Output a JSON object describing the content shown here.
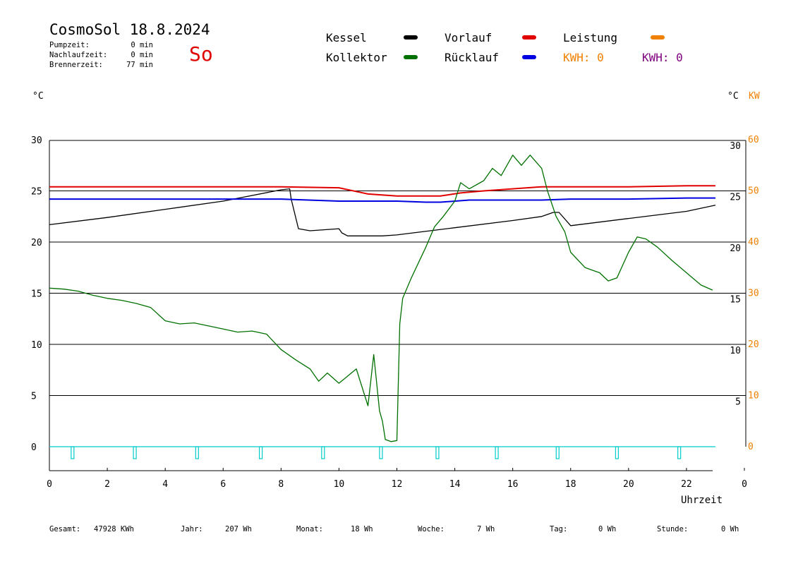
{
  "header": {
    "title": "CosmoSol 18.8.2024",
    "day": "So",
    "stats": [
      {
        "label": "Pumpzeit:",
        "value": "0 min"
      },
      {
        "label": "Nachlaufzeit:",
        "value": "0 min"
      },
      {
        "label": "Brennerzeit:",
        "value": "77 min"
      }
    ]
  },
  "legend": {
    "items": [
      {
        "label": "Kessel",
        "color": "#000000"
      },
      {
        "label": "Vorlauf",
        "color": "#e00000"
      },
      {
        "label": "Leistung",
        "color": "#f08000"
      },
      {
        "label": "Kollektor",
        "color": "#007000"
      },
      {
        "label": "Rücklauf",
        "color": "#0000e0"
      }
    ],
    "kwh": [
      {
        "text": "KWH: 0",
        "color": "#f08000"
      },
      {
        "text": "KWH: 0",
        "color": "#800080"
      }
    ]
  },
  "axes": {
    "left_unit": "°C",
    "right_unit_c": "°C",
    "right_unit_kw": "KW",
    "x_label": "Uhrzeit"
  },
  "footer": [
    {
      "label": "Gesamt:",
      "value": "47928 KWh"
    },
    {
      "label": "Jahr:",
      "value": "207 Wh"
    },
    {
      "label": "Monat:",
      "value": "18 Wh"
    },
    {
      "label": "Woche:",
      "value": "7 Wh"
    },
    {
      "label": "Tag:",
      "value": "0 Wh"
    },
    {
      "label": "Stunde:",
      "value": "0 Wh"
    }
  ],
  "chart_data": {
    "type": "line",
    "x_ticks": [
      "0",
      "2",
      "4",
      "6",
      "8",
      "10",
      "12",
      "14",
      "16",
      "18",
      "20",
      "22",
      "0"
    ],
    "y_left_ticks": [
      "30",
      "25",
      "20",
      "15",
      "10",
      "5",
      "0"
    ],
    "y_right_c_ticks": [
      "30",
      "25",
      "20",
      "15",
      "10",
      "5"
    ],
    "y_right_kw_ticks": [
      "60",
      "50",
      "40",
      "30",
      "20",
      "10",
      "0"
    ],
    "xlim": [
      0,
      24
    ],
    "ylim": [
      -2.3,
      30
    ],
    "series": [
      {
        "name": "Kessel",
        "color": "#000000",
        "x": [
          0,
          2,
          4,
          6,
          8,
          8.3,
          8.35,
          8.6,
          9,
          10,
          10.1,
          10.3,
          11,
          11.5,
          12,
          14,
          16,
          17,
          17.4,
          17.6,
          18,
          20,
          22,
          23
        ],
        "y": [
          21.7,
          22.4,
          23.2,
          24.0,
          25.1,
          25.2,
          24.2,
          21.3,
          21.1,
          21.3,
          20.9,
          20.6,
          20.6,
          20.6,
          20.7,
          21.4,
          22.1,
          22.5,
          22.9,
          22.9,
          21.6,
          22.3,
          23.0,
          23.6
        ]
      },
      {
        "name": "Vorlauf",
        "color": "#e00000",
        "x": [
          0,
          4,
          8,
          10,
          11,
          12,
          13,
          13.5,
          14.2,
          15,
          16,
          17,
          18,
          20,
          22,
          23
        ],
        "y": [
          25.4,
          25.4,
          25.4,
          25.3,
          24.7,
          24.5,
          24.5,
          24.5,
          24.8,
          25.0,
          25.2,
          25.4,
          25.4,
          25.4,
          25.5,
          25.5
        ]
      },
      {
        "name": "Rücklauf",
        "color": "#0000e0",
        "x": [
          0,
          4,
          8,
          10,
          12,
          13,
          13.5,
          14.5,
          16,
          17,
          18,
          20,
          22,
          23
        ],
        "y": [
          24.2,
          24.2,
          24.2,
          24.0,
          24.0,
          23.9,
          23.9,
          24.1,
          24.1,
          24.1,
          24.2,
          24.2,
          24.3,
          24.3
        ]
      },
      {
        "name": "Kollektor",
        "color": "#007000",
        "x": [
          0,
          0.5,
          1,
          1.5,
          2,
          2.5,
          3,
          3.5,
          4,
          4.5,
          5,
          5.5,
          6,
          6.5,
          7,
          7.5,
          8,
          8.5,
          9,
          9.3,
          9.6,
          10,
          10.3,
          10.6,
          11,
          11.2,
          11.4,
          11.5,
          11.6,
          11.8,
          12,
          12.1,
          12.2,
          12.5,
          13,
          13.3,
          13.6,
          14,
          14.2,
          14.5,
          15,
          15.3,
          15.6,
          16,
          16.3,
          16.6,
          17,
          17.2,
          17.5,
          17.8,
          18,
          18.5,
          19,
          19.3,
          19.6,
          20,
          20.3,
          20.6,
          21,
          21.5,
          22,
          22.5,
          22.9
        ],
        "y": [
          15.5,
          15.4,
          15.2,
          14.8,
          14.5,
          14.3,
          14.0,
          13.6,
          12.3,
          12.0,
          12.1,
          11.8,
          11.5,
          11.2,
          11.3,
          11.0,
          9.5,
          8.5,
          7.6,
          6.4,
          7.2,
          6.2,
          6.9,
          7.6,
          4.0,
          9.0,
          3.5,
          2.5,
          0.7,
          0.5,
          0.6,
          12.0,
          14.5,
          16.5,
          19.5,
          21.5,
          22.5,
          24.0,
          25.8,
          25.2,
          26.0,
          27.2,
          26.5,
          28.5,
          27.5,
          28.5,
          27.2,
          25.0,
          22.5,
          21.0,
          19.0,
          17.5,
          17.0,
          16.2,
          16.5,
          19.0,
          20.5,
          20.3,
          19.5,
          18.2,
          17.0,
          15.8,
          15.3
        ]
      },
      {
        "name": "Leistung",
        "color": "#00cccc",
        "x": [
          0,
          23
        ],
        "y": [
          0,
          0
        ],
        "pulses_x": [
          0.8,
          2.95,
          5.1,
          7.3,
          9.45,
          11.45,
          13.4,
          15.45,
          17.55,
          19.6,
          21.75
        ]
      }
    ]
  }
}
